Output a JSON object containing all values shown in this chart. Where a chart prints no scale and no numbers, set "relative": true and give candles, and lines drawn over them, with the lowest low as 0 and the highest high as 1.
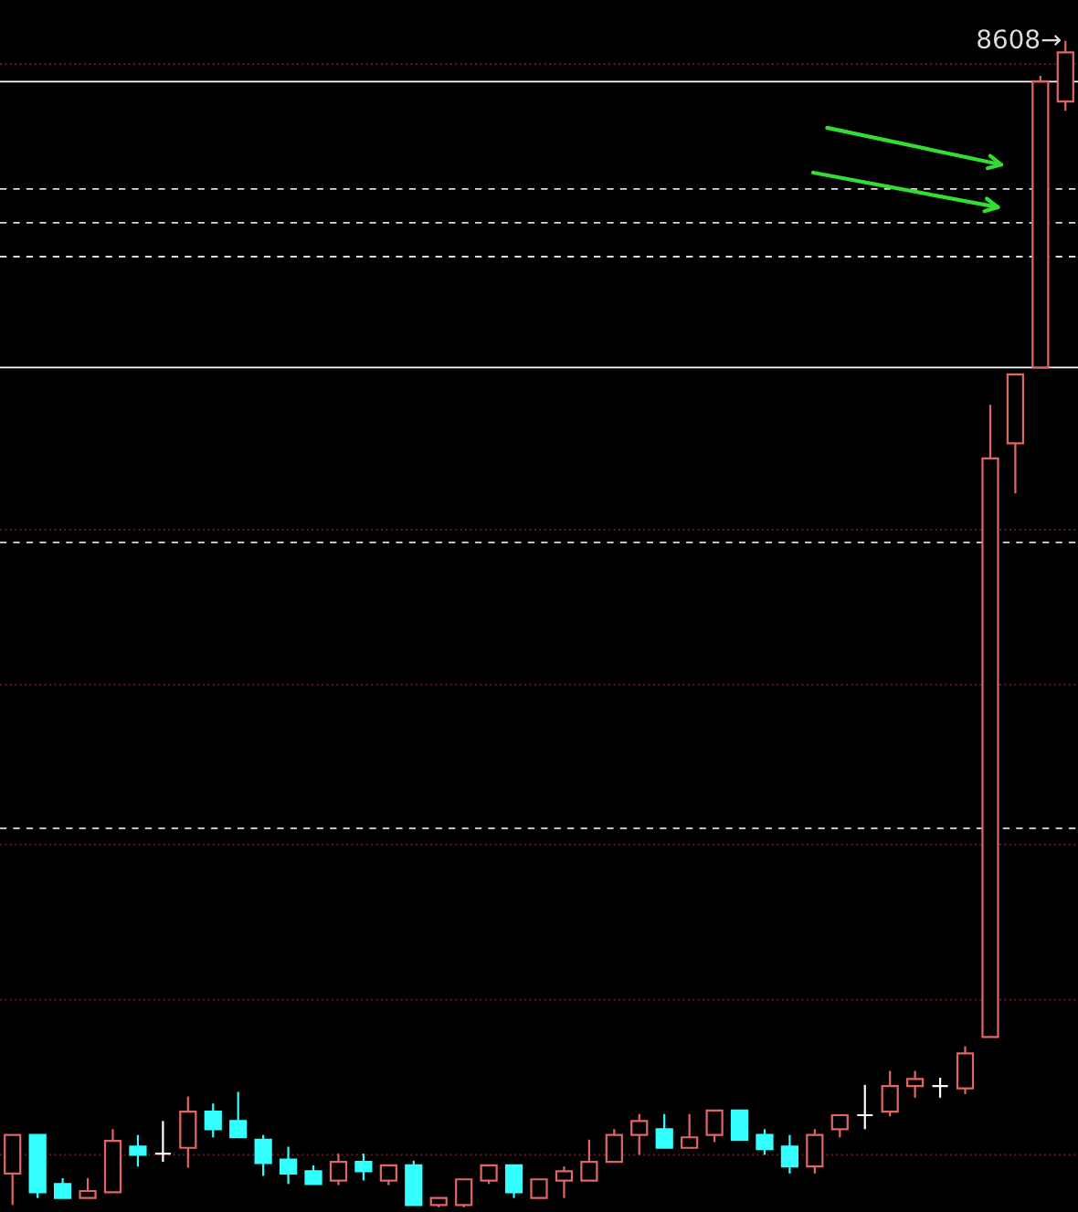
{
  "chart_data": {
    "type": "candlestick",
    "relative": true,
    "categories": [
      null,
      null,
      null,
      null,
      null,
      null,
      null,
      null,
      null,
      null,
      null,
      null,
      null,
      null,
      null,
      null,
      null,
      null,
      null,
      null,
      null,
      null,
      null,
      null,
      null,
      null,
      null,
      null,
      null,
      null,
      null,
      null,
      null,
      null,
      null,
      null,
      null,
      null,
      null,
      null,
      null,
      null,
      null
    ],
    "ohlc": [
      [
        0.029,
        0.062,
        0.002,
        0.062
      ],
      [
        0.062,
        0.062,
        0.008,
        0.013
      ],
      [
        0.02,
        0.025,
        0.008,
        0.008
      ],
      [
        0.008,
        0.025,
        0.008,
        0.014
      ],
      [
        0.013,
        0.067,
        0.013,
        0.057
      ],
      [
        0.052,
        0.062,
        0.035,
        0.045
      ],
      [
        0.046,
        0.074,
        0.039,
        0.046
      ],
      [
        0.051,
        0.095,
        0.034,
        0.082
      ],
      [
        0.082,
        0.089,
        0.06,
        0.067
      ],
      [
        0.074,
        0.099,
        0.06,
        0.06
      ],
      [
        0.058,
        0.062,
        0.027,
        0.038
      ],
      [
        0.041,
        0.052,
        0.02,
        0.029
      ],
      [
        0.031,
        0.036,
        0.02,
        0.02
      ],
      [
        0.023,
        0.046,
        0.019,
        0.039
      ],
      [
        0.039,
        0.046,
        0.023,
        0.031
      ],
      [
        0.023,
        0.036,
        0.019,
        0.036
      ],
      [
        0.036,
        0.04,
        0.002,
        0.002
      ],
      [
        0.002,
        0.008,
        0.0,
        0.008
      ],
      [
        0.002,
        0.024,
        0.0,
        0.024
      ],
      [
        0.023,
        0.036,
        0.02,
        0.036
      ],
      [
        0.036,
        0.036,
        0.008,
        0.013
      ],
      [
        0.008,
        0.024,
        0.008,
        0.024
      ],
      [
        0.023,
        0.035,
        0.008,
        0.031
      ],
      [
        0.023,
        0.058,
        0.023,
        0.039
      ],
      [
        0.039,
        0.067,
        0.039,
        0.062
      ],
      [
        0.062,
        0.08,
        0.045,
        0.074
      ],
      [
        0.067,
        0.08,
        0.051,
        0.051
      ],
      [
        0.051,
        0.08,
        0.051,
        0.06
      ],
      [
        0.062,
        0.083,
        0.056,
        0.083
      ],
      [
        0.083,
        0.083,
        0.058,
        0.058
      ],
      [
        0.062,
        0.067,
        0.045,
        0.05
      ],
      [
        0.052,
        0.062,
        0.029,
        0.035
      ],
      [
        0.035,
        0.067,
        0.029,
        0.062
      ],
      [
        0.067,
        0.079,
        0.06,
        0.079
      ],
      [
        0.079,
        0.105,
        0.067,
        0.079
      ],
      [
        0.082,
        0.117,
        0.078,
        0.104
      ],
      [
        0.104,
        0.117,
        0.094,
        0.11
      ],
      [
        0.104,
        0.111,
        0.094,
        0.104
      ],
      [
        0.102,
        0.138,
        0.097,
        0.132
      ],
      [
        0.146,
        0.688,
        0.146,
        0.642
      ],
      [
        0.655,
        0.714,
        0.612,
        0.714
      ],
      [
        0.72,
        0.97,
        0.72,
        0.965
      ],
      [
        0.948,
        1.0,
        0.94,
        0.99
      ]
    ],
    "colors": [
      "#e06666",
      "#33ffff",
      "#33ffff",
      "#e06666",
      "#e06666",
      "#33ffff",
      "#ffffff",
      "#e06666",
      "#33ffff",
      "#33ffff",
      "#33ffff",
      "#33ffff",
      "#33ffff",
      "#e06666",
      "#33ffff",
      "#e06666",
      "#33ffff",
      "#e06666",
      "#e06666",
      "#e06666",
      "#33ffff",
      "#e06666",
      "#e06666",
      "#e06666",
      "#e06666",
      "#e06666",
      "#33ffff",
      "#e06666",
      "#e06666",
      "#33ffff",
      "#33ffff",
      "#33ffff",
      "#e06666",
      "#e06666",
      "#ffffff",
      "#e06666",
      "#e06666",
      "#ffffff",
      "#e06666",
      "#e06666",
      "#e06666",
      "#e06666",
      "#e06666"
    ],
    "ref_lines": [
      {
        "axis": "y",
        "value": 0.965,
        "color": "#ffffff",
        "line_style": "solid"
      },
      {
        "axis": "y",
        "value": 0.72,
        "color": "#ffffff",
        "line_style": "solid"
      },
      {
        "axis": "y",
        "value": 0.873,
        "color": "#dddddd",
        "line_style": "dashed"
      },
      {
        "axis": "y",
        "value": 0.844,
        "color": "#dddddd",
        "line_style": "dashed"
      },
      {
        "axis": "y",
        "value": 0.815,
        "color": "#dddddd",
        "line_style": "dashed"
      },
      {
        "axis": "y",
        "value": 0.57,
        "color": "#dddddd",
        "line_style": "dashed"
      },
      {
        "axis": "y",
        "value": 0.325,
        "color": "#dddddd",
        "line_style": "dashed"
      },
      {
        "axis": "y",
        "value": 0.98,
        "color": "#7a1f1f",
        "line_style": "dotted"
      },
      {
        "axis": "y",
        "value": 0.581,
        "color": "#7a1f1f",
        "line_style": "dotted"
      },
      {
        "axis": "y",
        "value": 0.448,
        "color": "#7a1f1f",
        "line_style": "dotted"
      },
      {
        "axis": "y",
        "value": 0.311,
        "color": "#7a1f1f",
        "line_style": "dotted"
      },
      {
        "axis": "y",
        "value": 0.178,
        "color": "#7a1f1f",
        "line_style": "dotted"
      },
      {
        "axis": "y",
        "value": 0.045,
        "color": "#7a1f1f",
        "line_style": "dotted"
      }
    ],
    "annotations": [
      "8608→"
    ]
  }
}
